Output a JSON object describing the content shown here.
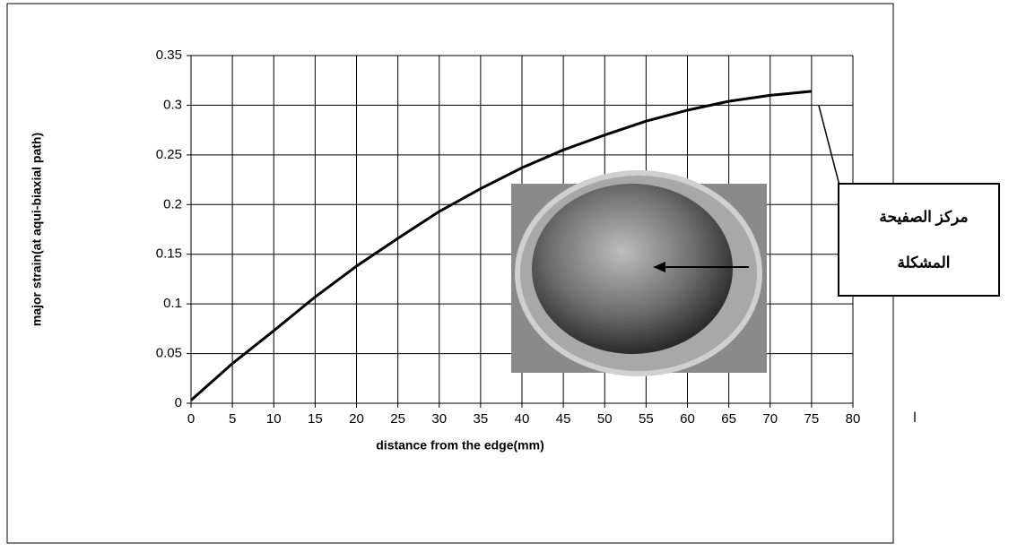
{
  "chart_data": {
    "type": "line",
    "x_label": "distance from the edge(mm)",
    "y_label": "major strain(at aqui-biaxial path)",
    "x": [
      0,
      5,
      10,
      15,
      20,
      25,
      30,
      35,
      40,
      45,
      50,
      55,
      60,
      65,
      70,
      75
    ],
    "series": [
      {
        "color": "#000000",
        "values": [
          0.003,
          0.04,
          0.073,
          0.107,
          0.138,
          0.166,
          0.193,
          0.216,
          0.237,
          0.255,
          0.27,
          0.284,
          0.295,
          0.304,
          0.31,
          0.314
        ]
      }
    ],
    "xlim": [
      0,
      80
    ],
    "xticks": [
      0,
      5,
      10,
      15,
      20,
      25,
      30,
      35,
      40,
      45,
      50,
      55,
      60,
      65,
      70,
      75,
      80
    ],
    "ylim": [
      0,
      0.35
    ],
    "yticks": [
      0,
      0.05,
      0.1,
      0.15,
      0.2,
      0.25,
      0.3,
      0.35
    ],
    "grid": true,
    "callout": [
      "مركز الصفيحة",
      "المشكلة"
    ],
    "note": "ا"
  }
}
